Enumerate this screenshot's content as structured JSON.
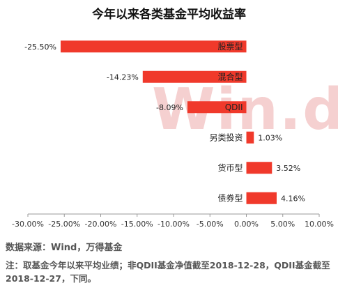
{
  "chart_data": {
    "type": "bar",
    "orientation": "horizontal",
    "title": "今年以来各类基金平均收益率",
    "categories": [
      "股票型",
      "混合型",
      "QDII",
      "另类投资",
      "货币型",
      "债券型"
    ],
    "values": [
      -25.5,
      -14.23,
      -8.09,
      1.03,
      3.52,
      4.16
    ],
    "value_labels": [
      "-25.50%",
      "-14.23%",
      "-8.09%",
      "1.03%",
      "3.52%",
      "4.16%"
    ],
    "xlim": [
      -30,
      10
    ],
    "xticks": [
      "-30.00%",
      "-25.00%",
      "-20.00%",
      "-15.00%",
      "-10.00%",
      "-5.00%",
      "0.00%",
      "5.00%",
      "10.00%"
    ],
    "xlabel": "",
    "ylabel": "",
    "grid": false,
    "legend": "none",
    "bar_color": "#f0392b"
  },
  "watermark": "Win.d",
  "source": "数据来源：Wind，万得基金",
  "note": "注：取基金今年以来平均业绩；非QDII基金净值截至2018-12-28，QDII基金截至2018-12-27，下同。"
}
